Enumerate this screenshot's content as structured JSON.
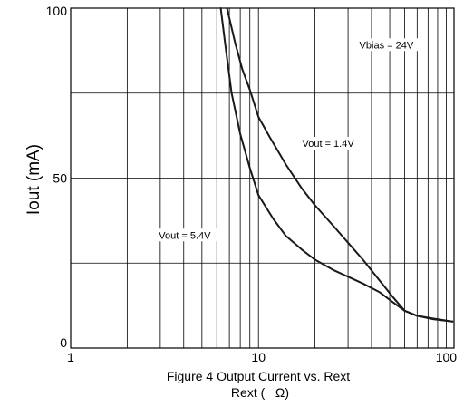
{
  "chart_data": {
    "type": "line",
    "title": "Figure 4 Output Current vs. Rext",
    "xlabel": "Rext (   Ω)",
    "ylabel": "Iout (mA)",
    "x_scale": "log",
    "xlim": [
      1,
      110
    ],
    "ylim": [
      0,
      100
    ],
    "x_ticks": [
      {
        "value": 1,
        "label": "1"
      },
      {
        "value": 10,
        "label": "10"
      },
      {
        "value": 100,
        "label": "100"
      }
    ],
    "y_ticks": [
      {
        "value": 0,
        "label": "0"
      },
      {
        "value": 50,
        "label": "50"
      },
      {
        "value": 100,
        "label": "100"
      }
    ],
    "y_gridlines": [
      0,
      25,
      50,
      75,
      100
    ],
    "x_gridlines": [
      1,
      2,
      3,
      4,
      5,
      6,
      7,
      8,
      9,
      10,
      20,
      30,
      40,
      50,
      60,
      70,
      80,
      90,
      100
    ],
    "grid": true,
    "series": [
      {
        "name": "Vout = 1.4V",
        "x": [
          6.8,
          7.5,
          8.2,
          9.0,
          10,
          11.5,
          14,
          17,
          20,
          25,
          30,
          36,
          44,
          52,
          60,
          70,
          85,
          108
        ],
        "y": [
          100,
          90,
          82,
          76,
          68,
          62,
          54,
          47,
          42,
          36,
          31,
          26,
          20,
          15,
          11,
          9.5,
          8.7,
          7.8
        ]
      },
      {
        "name": "Vout = 5.4V",
        "x": [
          6.3,
          6.7,
          7.2,
          8.0,
          9.0,
          10,
          12,
          14,
          17,
          20,
          25,
          30,
          36,
          44,
          52,
          60,
          70,
          85,
          108
        ],
        "y": [
          100,
          88,
          75,
          63,
          53,
          45,
          38,
          33,
          29,
          26,
          23,
          21,
          19,
          16.5,
          13.5,
          11,
          9.5,
          8.5,
          7.8
        ]
      }
    ],
    "annotations": [
      {
        "text": "Vbias = 24V",
        "x": 48,
        "y": 89
      },
      {
        "text": "Vout = 1.4V",
        "x": 23.5,
        "y": 60
      },
      {
        "text": "Vout = 5.4V",
        "x": 4.05,
        "y": 33
      }
    ]
  }
}
